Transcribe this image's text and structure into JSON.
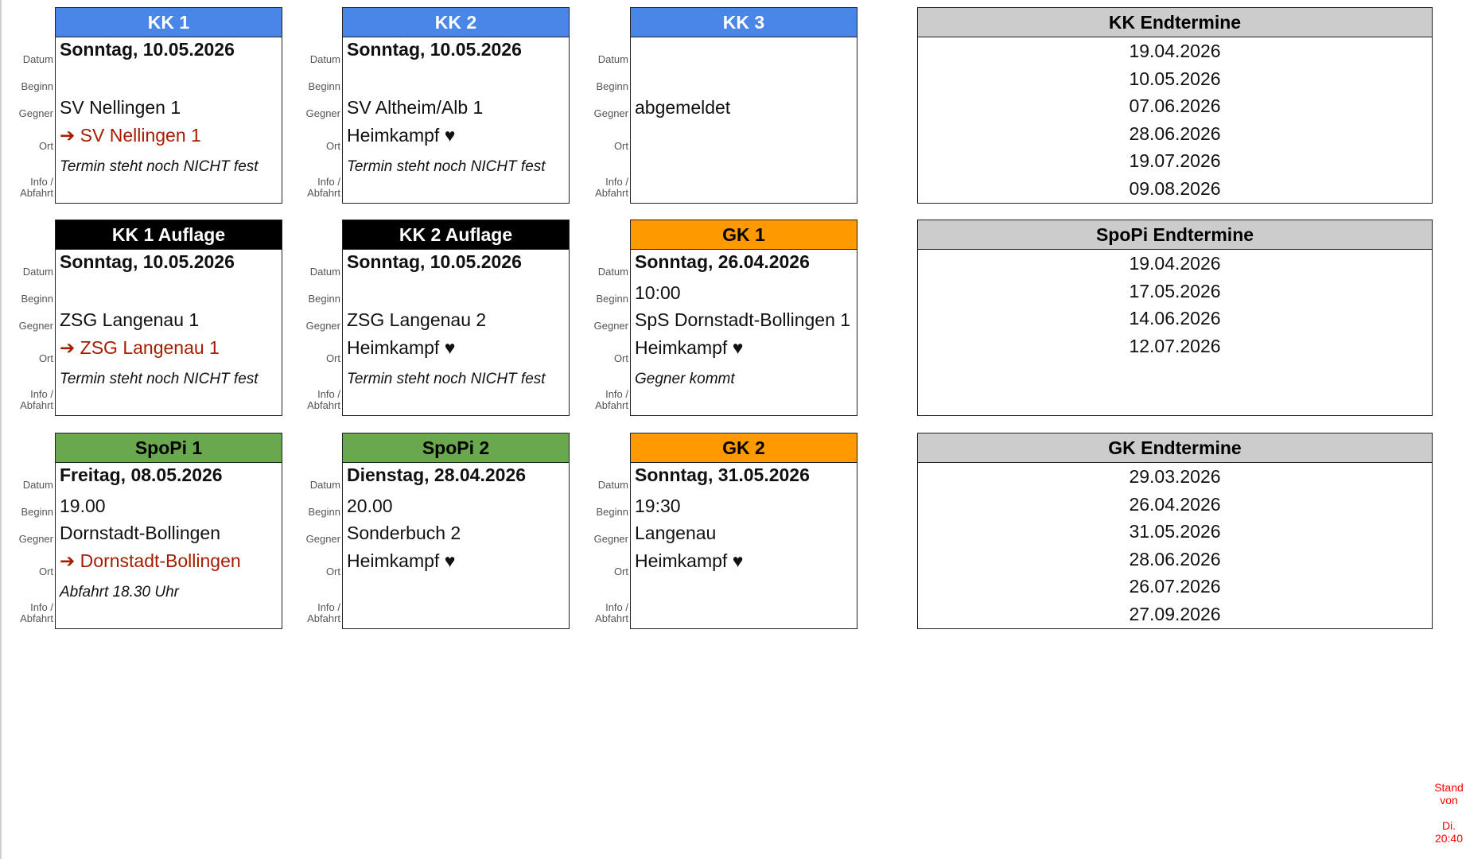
{
  "field_labels": [
    "Datum",
    "Beginn",
    "Gegner",
    "Ort",
    "Info / Abfahrt"
  ],
  "cards": [
    {
      "title": "KK 1",
      "header_color": "#4a86e8",
      "header_text": "#ffffff",
      "datum": "Sonntag, 10.05.2026",
      "beginn": "",
      "gegner": "SV Nellingen 1",
      "ort": "➔ SV Nellingen 1",
      "ort_color": "#a61c00",
      "info": "Termin steht noch NICHT fest"
    },
    {
      "title": "KK 2",
      "header_color": "#4a86e8",
      "header_text": "#ffffff",
      "datum": "Sonntag, 10.05.2026",
      "beginn": "",
      "gegner": "SV Altheim/Alb 1",
      "ort": "Heimkampf ♥",
      "ort_color": "#111111",
      "info": "Termin steht noch NICHT fest"
    },
    {
      "title": "KK 3",
      "header_color": "#4a86e8",
      "header_text": "#ffffff",
      "datum": "",
      "beginn": "",
      "gegner": "abgemeldet",
      "ort": "",
      "ort_color": "#111111",
      "info": ""
    },
    {
      "title": "KK 1 Auflage",
      "header_color": "#000000",
      "header_text": "#ffffff",
      "datum": "Sonntag, 10.05.2026",
      "beginn": "",
      "gegner": "ZSG Langenau 1",
      "ort": "➔ ZSG Langenau 1",
      "ort_color": "#a61c00",
      "info": "Termin steht noch NICHT fest"
    },
    {
      "title": "KK 2 Auflage",
      "header_color": "#000000",
      "header_text": "#ffffff",
      "datum": "Sonntag, 10.05.2026",
      "beginn": "",
      "gegner": "ZSG Langenau 2",
      "ort": "Heimkampf ♥",
      "ort_color": "#111111",
      "info": "Termin steht noch NICHT fest"
    },
    {
      "title": "GK 1",
      "header_color": "#ff9900",
      "header_text": "#000000",
      "datum": "Sonntag, 26.04.2026",
      "beginn": "10:00",
      "gegner": "SpS Dornstadt-Bollingen 1",
      "ort": "Heimkampf ♥",
      "ort_color": "#111111",
      "info": "Gegner kommt"
    },
    {
      "title": "SpoPi 1",
      "header_color": "#6aa84f",
      "header_text": "#000000",
      "datum": "Freitag, 08.05.2026",
      "beginn": "19.00",
      "gegner": "Dornstadt-Bollingen",
      "ort": "➔ Dornstadt-Bollingen",
      "ort_color": "#a61c00",
      "info": "Abfahrt 18.30 Uhr"
    },
    {
      "title": "SpoPi 2",
      "header_color": "#6aa84f",
      "header_text": "#000000",
      "datum": "Dienstag, 28.04.2026",
      "beginn": "20.00",
      "gegner": "Sonderbuch 2",
      "ort": "Heimkampf ♥",
      "ort_color": "#111111",
      "info": ""
    },
    {
      "title": "GK 2",
      "header_color": "#ff9900",
      "header_text": "#000000",
      "datum": "Sonntag, 31.05.2026",
      "beginn": "19:30",
      "gegner": "Langenau",
      "ort": "Heimkampf ♥",
      "ort_color": "#111111",
      "info": ""
    }
  ],
  "endtermine": [
    {
      "title": "KK Endtermine",
      "dates": [
        "19.04.2026",
        "10.05.2026",
        "07.06.2026",
        "28.06.2026",
        "19.07.2026",
        "09.08.2026"
      ]
    },
    {
      "title": "SpoPi Endtermine",
      "dates": [
        "19.04.2026",
        "17.05.2026",
        "14.06.2026",
        "12.07.2026"
      ]
    },
    {
      "title": "GK Endtermine",
      "dates": [
        "29.03.2026",
        "26.04.2026",
        "31.05.2026",
        "28.06.2026",
        "26.07.2026",
        "27.09.2026"
      ]
    }
  ],
  "stand": {
    "line1": "Stand",
    "line2": "von",
    "line3": "Di.",
    "line4": "20:40"
  }
}
